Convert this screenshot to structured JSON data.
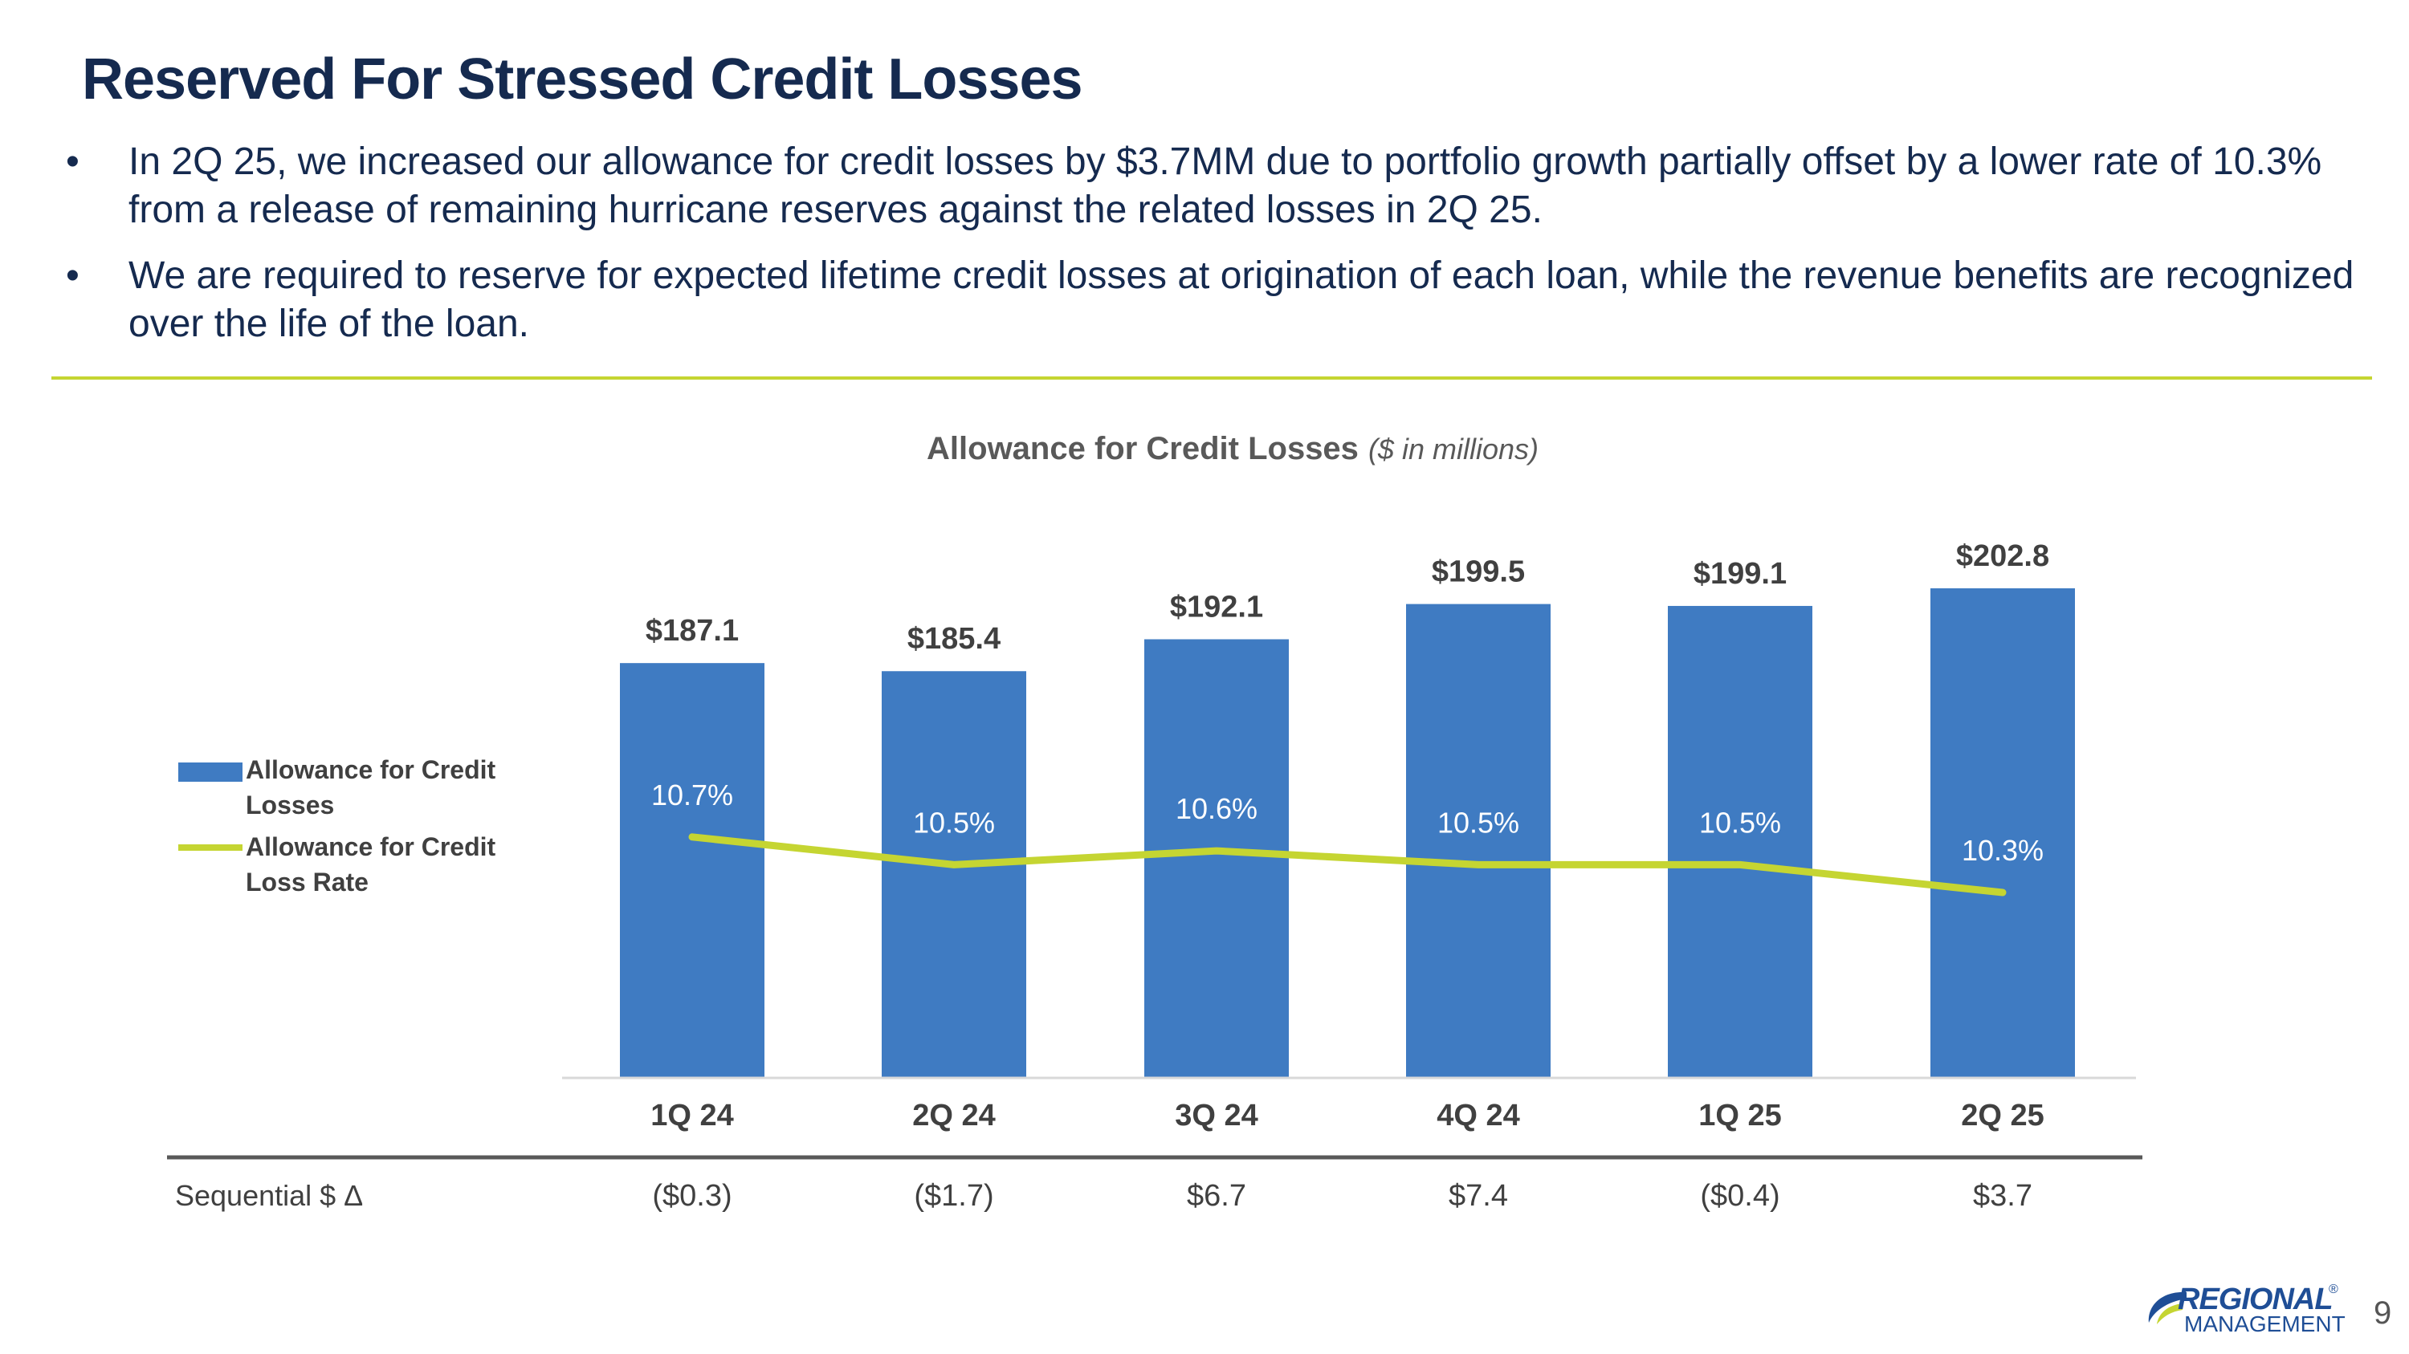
{
  "title": "Reserved For Stressed Credit Losses",
  "bullets": [
    "In 2Q 25, we increased our allowance for credit losses by $3.7MM due to portfolio growth partially offset by a lower rate of 10.3% from a release of remaining hurricane reserves against the related losses in 2Q 25.",
    "We are required to reserve for expected lifetime credit losses at origination of each loan, while the revenue benefits are recognized over the life of the loan."
  ],
  "chart_data": {
    "type": "bar",
    "title": "Allowance for Credit Losses",
    "subtitle": "($ in millions)",
    "categories": [
      "1Q 24",
      "2Q 24",
      "3Q 24",
      "4Q 24",
      "1Q 25",
      "2Q 25"
    ],
    "series": [
      {
        "name": "Allowance for Credit Losses",
        "type": "bar",
        "values": [
          187.1,
          185.4,
          192.1,
          199.5,
          199.1,
          202.8
        ],
        "labels": [
          "$187.1",
          "$185.4",
          "$192.1",
          "$199.5",
          "$199.1",
          "$202.8"
        ],
        "color": "#3f7bc2"
      },
      {
        "name": "Allowance for Credit Loss Rate",
        "type": "line",
        "values": [
          10.7,
          10.5,
          10.6,
          10.5,
          10.5,
          10.3
        ],
        "labels": [
          "10.7%",
          "10.5%",
          "10.6%",
          "10.5%",
          "10.5%",
          "10.3%"
        ],
        "color": "#c5d532"
      }
    ],
    "legend": [
      "Allowance for Credit Losses",
      "Allowance for Credit Loss Rate"
    ],
    "legend_position": "left",
    "table": {
      "row_label": "Sequential $ Δ",
      "values": [
        "($0.3)",
        "($1.7)",
        "$6.7",
        "$7.4",
        "($0.4)",
        "$3.7"
      ]
    }
  },
  "logo": {
    "line1": "REGIONAL",
    "line2": "MANAGEMENT",
    "mark": "®"
  },
  "page_number": "9"
}
